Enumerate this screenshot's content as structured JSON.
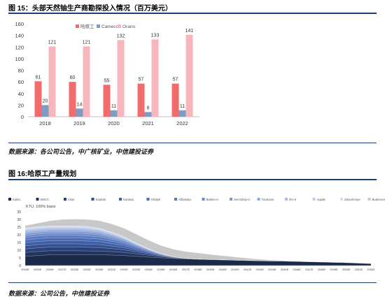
{
  "figure1": {
    "title": "图 15：头部天然铀生产商勘探投入情况（百万美元）",
    "source": "数据来源：各公司公告，中广核矿业，中信建投证券"
  },
  "figure2": {
    "title": "图 16:哈原工产量规划",
    "source": "数据来源：公司公告，中信建投证券"
  },
  "chart_data": [
    {
      "type": "bar",
      "title": "",
      "xlabel": "",
      "ylabel": "",
      "ylim": [
        0,
        160
      ],
      "yticks": [
        0,
        20,
        40,
        60,
        80,
        100,
        120,
        140,
        160
      ],
      "grid": false,
      "legend": "top-left",
      "categories": [
        "2018",
        "2019",
        "2020",
        "2021",
        "2022"
      ],
      "series": [
        {
          "name": "哈原工",
          "color": "#f46b6b",
          "values": [
            61,
            60,
            55,
            57,
            57
          ]
        },
        {
          "name": "Cameco",
          "color": "#7f9dc4",
          "values": [
            20,
            14,
            11,
            8,
            11
          ]
        },
        {
          "name": "Orano",
          "color": "#f7b6bc",
          "values": [
            121,
            121,
            132,
            133,
            141
          ]
        }
      ]
    },
    {
      "type": "area",
      "stacked": true,
      "annotation": "KTU, 100% basis",
      "ylim": [
        0,
        35
      ],
      "yticks": [
        0,
        5,
        10,
        15,
        20,
        25,
        30,
        35
      ],
      "legend": "top",
      "x": [
        "2024E",
        "2025E",
        "2026E",
        "2027E",
        "2028E",
        "2029E",
        "2030E",
        "2031E",
        "2032E",
        "2033E",
        "2034E",
        "2035E",
        "2036E",
        "2037E",
        "2038E",
        "2039E",
        "2040E",
        "2041E",
        "2042E",
        "2043E",
        "2044E",
        "2045E",
        "2046E",
        "2047E",
        "2048E",
        "2049E",
        "2050E",
        "2051E",
        "2052E"
      ],
      "x_tick_labels": [
        "2024E",
        "2025E",
        "2026E",
        "2027E",
        "2028E",
        "2029E",
        "2030E",
        "2031E",
        "2032E",
        "2033E",
        "2034E",
        "2035E",
        "2036E",
        "2037E",
        "2038E",
        "2039E",
        "2040E",
        "2041E",
        "2042E",
        "2043E",
        "2044E",
        "2045E",
        "2046E",
        "2047E",
        "2048E",
        "2049E",
        "2050E",
        "2051E",
        "2052E"
      ],
      "series": [
        {
          "name": "Katko",
          "color": "#1b2a48",
          "values": [
            6.0,
            6.5,
            7.0,
            7.0,
            7.0,
            7.0,
            7.0,
            6.8,
            6.5,
            6.0,
            5.5,
            5.0,
            4.6,
            4.3,
            4.0,
            3.8,
            3.6,
            3.4,
            3.2,
            3.0,
            2.9,
            2.8,
            2.6,
            2.4,
            2.2,
            2.0,
            1.8,
            1.5,
            1.2
          ]
        },
        {
          "name": "SMCC",
          "color": "#223560",
          "values": [
            2.5,
            2.6,
            2.6,
            2.6,
            2.6,
            2.5,
            2.4,
            2.2,
            2.0,
            1.6,
            1.2,
            0.8,
            0.4,
            0.2,
            0.1,
            0,
            0,
            0,
            0,
            0,
            0,
            0,
            0,
            0,
            0,
            0,
            0,
            0,
            0
          ]
        },
        {
          "name": "Inkai",
          "color": "#2b4278",
          "values": [
            2.3,
            2.4,
            2.4,
            2.4,
            2.4,
            2.4,
            2.3,
            2.0,
            1.7,
            1.3,
            0.9,
            0.5,
            0.3,
            0.1,
            0,
            0,
            0,
            0,
            0,
            0,
            0,
            0,
            0,
            0,
            0,
            0,
            0,
            0,
            0
          ]
        },
        {
          "name": "Saulran",
          "color": "#34508f",
          "values": [
            2.0,
            2.1,
            2.1,
            2.1,
            2.1,
            2.0,
            1.9,
            1.7,
            1.4,
            1.0,
            0.7,
            0.4,
            0.2,
            0,
            0,
            0,
            0,
            0,
            0,
            0,
            0,
            0,
            0,
            0,
            0,
            0,
            0,
            0,
            0
          ]
        },
        {
          "name": "Karatau",
          "color": "#3e5ea6",
          "values": [
            2.0,
            2.0,
            2.0,
            2.0,
            2.0,
            2.0,
            1.9,
            1.6,
            1.3,
            0.9,
            0.6,
            0.3,
            0.1,
            0,
            0,
            0,
            0,
            0,
            0,
            0,
            0,
            0,
            0,
            0,
            0,
            0,
            0,
            0,
            0
          ]
        },
        {
          "name": "Ortalyk",
          "color": "#4a6bb5",
          "values": [
            1.8,
            1.9,
            1.9,
            1.9,
            1.9,
            1.8,
            1.7,
            1.5,
            1.2,
            0.8,
            0.5,
            0.3,
            0.1,
            0,
            0,
            0,
            0,
            0,
            0,
            0,
            0,
            0,
            0,
            0,
            0,
            0,
            0,
            0,
            0
          ]
        },
        {
          "name": "Akbastau",
          "color": "#5a79c0",
          "values": [
            1.6,
            1.6,
            1.6,
            1.6,
            1.6,
            1.6,
            1.5,
            1.3,
            1.0,
            0.7,
            0.4,
            0.2,
            0,
            0,
            0,
            0,
            0,
            0,
            0,
            0,
            0,
            0,
            0,
            0,
            0,
            0,
            0,
            0,
            0
          ]
        },
        {
          "name": "Baiken-U",
          "color": "#6d89c9",
          "values": [
            1.4,
            1.4,
            1.4,
            1.4,
            1.4,
            1.4,
            1.3,
            1.1,
            0.9,
            0.6,
            0.3,
            0.1,
            0,
            0,
            0,
            0,
            0,
            0,
            0,
            0,
            0,
            0,
            0,
            0,
            0,
            0,
            0,
            0,
            0
          ]
        },
        {
          "name": "Semizbay-U",
          "color": "#8099d1",
          "values": [
            1.2,
            1.2,
            1.2,
            1.2,
            1.2,
            1.2,
            1.1,
            1.0,
            0.8,
            0.5,
            0.3,
            0.1,
            0,
            0,
            0,
            0,
            0,
            0,
            0,
            0,
            0,
            0,
            0,
            0,
            0,
            0,
            0,
            0,
            0
          ]
        },
        {
          "name": "Turanium",
          "color": "#94aad9",
          "values": [
            1.0,
            1.0,
            1.0,
            1.0,
            1.0,
            1.0,
            0.9,
            0.8,
            0.6,
            0.4,
            0.2,
            0.1,
            0,
            0,
            0,
            0,
            0,
            0,
            0,
            0,
            0,
            0,
            0,
            0,
            0,
            0,
            0,
            0,
            0
          ]
        },
        {
          "name": "RU-6",
          "color": "#a9bce2",
          "values": [
            1.0,
            1.0,
            1.0,
            1.0,
            1.0,
            1.0,
            0.9,
            0.7,
            0.5,
            0.3,
            0.2,
            0,
            0,
            0,
            0,
            0,
            0,
            0,
            0,
            0,
            0,
            0,
            0,
            0,
            0,
            0,
            0,
            0,
            0
          ]
        },
        {
          "name": "Appak",
          "color": "#bfcdea",
          "values": [
            0.8,
            0.8,
            0.8,
            0.8,
            0.8,
            0.8,
            0.7,
            0.6,
            0.4,
            0.3,
            0.1,
            0,
            0,
            0,
            0,
            0,
            0,
            0,
            0,
            0,
            0,
            0,
            0,
            0,
            0,
            0,
            0,
            0,
            0
          ]
        },
        {
          "name": "Zarechnoye",
          "color": "#d4def1",
          "values": [
            0.8,
            0.8,
            0.8,
            0.8,
            0.8,
            0.8,
            0.7,
            0.5,
            0.4,
            0.2,
            0.1,
            0,
            0,
            0,
            0,
            0,
            0,
            0,
            0,
            0,
            0,
            0,
            0,
            0,
            0,
            0,
            0,
            0,
            0
          ]
        },
        {
          "name": "Budenovskoye",
          "color": "#c8c8c8",
          "values": [
            1.6,
            2.2,
            3.3,
            4.2,
            4.4,
            4.5,
            4.9,
            5.3,
            5.6,
            5.8,
            5.5,
            5.2,
            4.9,
            4.5,
            4.1,
            3.4,
            2.8,
            2.2,
            1.6,
            1.1,
            0.7,
            0.4,
            0.2,
            0,
            0,
            0,
            0,
            0,
            0
          ]
        }
      ]
    }
  ]
}
